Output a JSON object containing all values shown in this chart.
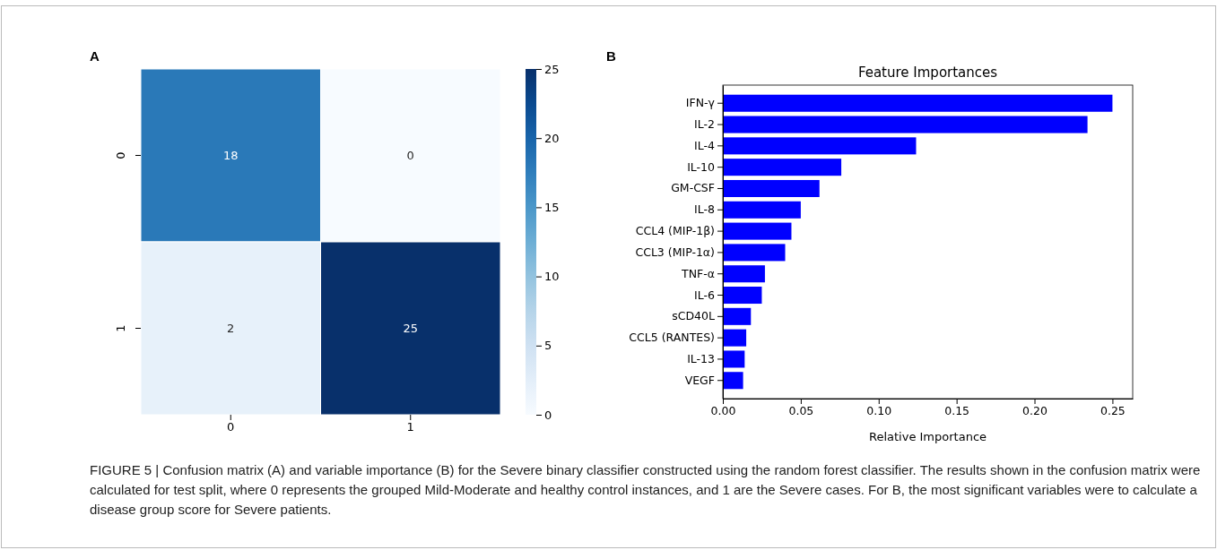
{
  "chart_data": [
    {
      "type": "heatmap",
      "categories": [
        "0",
        "1"
      ],
      "y_categories": [
        "0",
        "1"
      ],
      "cells": [
        [
          18,
          0
        ],
        [
          2,
          25
        ]
      ],
      "clim": [
        0,
        25
      ],
      "cticks": [
        0,
        5,
        10,
        15,
        20,
        25
      ],
      "data_labels": true,
      "annotations": [
        "A"
      ]
    },
    {
      "type": "bar",
      "orientation": "horizontal",
      "title": "Feature Importances",
      "xlabel": "Relative Importance",
      "categories": [
        "IFN-γ",
        "IL-2",
        "IL-4",
        "IL-10",
        "GM-CSF",
        "IL-8",
        "CCL4 (MIP-1β)",
        "CCL3 (MIP-1α)",
        "TNF-α",
        "IL-6",
        "sCD40L",
        "CCL5 (RANTES)",
        "IL-13",
        "VEGF"
      ],
      "values": [
        0.25,
        0.234,
        0.124,
        0.076,
        0.062,
        0.05,
        0.044,
        0.04,
        0.027,
        0.025,
        0.018,
        0.015,
        0.014,
        0.013
      ],
      "color": "#0000ff",
      "xlim": [
        0,
        0.263
      ],
      "xticks": [
        {
          "value": 0,
          "label": "0.00"
        },
        {
          "value": 0.05,
          "label": "0.05"
        },
        {
          "value": 0.1,
          "label": "0.10"
        },
        {
          "value": 0.15,
          "label": "0.15"
        },
        {
          "value": 0.2,
          "label": "0.20"
        },
        {
          "value": 0.25,
          "label": "0.25"
        }
      ],
      "annotations": [
        "B",
        "FIGURE 5 | Confusion matrix (A) and variable importance (B) for the Severe binary classifier constructed using the random forest classifier. The results shown in the confusion matrix were calculated for test split, where 0 represents the grouped Mild-Moderate and healthy control instances, and 1 are the Severe cases. For B, the most significant variables were to calculate a disease group score for Severe patients."
      ]
    }
  ]
}
